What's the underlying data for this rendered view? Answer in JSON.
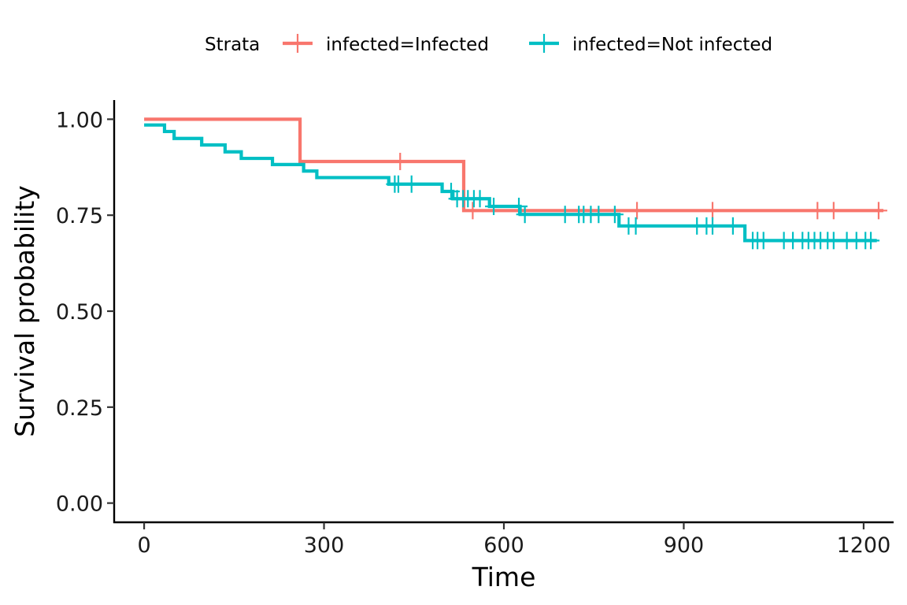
{
  "chart_data": {
    "type": "line",
    "subtype": "kaplan-meier step",
    "title": "",
    "xlabel": "Time",
    "ylabel": "Survival probability",
    "xlim": [
      -50,
      1250
    ],
    "ylim": [
      -0.05,
      1.05
    ],
    "x_ticks": [
      0,
      300,
      600,
      900,
      1200
    ],
    "x_tick_labels": [
      "0",
      "300",
      "600",
      "900",
      "1200"
    ],
    "y_ticks": [
      0,
      0.25,
      0.5,
      0.75,
      1.0
    ],
    "y_tick_labels": [
      "0.00",
      "0.25",
      "0.50",
      "0.75",
      "1.00"
    ],
    "grid": false,
    "legend": {
      "title": "Strata",
      "position": "top"
    },
    "series": [
      {
        "name": "infected=Infected",
        "color": "#F8766D",
        "steps": [
          [
            0,
            1.0
          ],
          [
            260,
            0.89
          ],
          [
            533,
            0.762
          ]
        ],
        "end_x": 1233,
        "censor_times": [
          427,
          548,
          822,
          948,
          1123,
          1150,
          1225
        ]
      },
      {
        "name": "infected=Not infected",
        "color": "#00BFC4",
        "steps": [
          [
            0,
            0.985
          ],
          [
            34,
            0.968
          ],
          [
            50,
            0.95
          ],
          [
            96,
            0.933
          ],
          [
            135,
            0.915
          ],
          [
            162,
            0.898
          ],
          [
            214,
            0.882
          ],
          [
            266,
            0.865
          ],
          [
            288,
            0.848
          ],
          [
            408,
            0.831
          ],
          [
            497,
            0.812
          ],
          [
            515,
            0.793
          ],
          [
            576,
            0.773
          ],
          [
            627,
            0.752
          ],
          [
            792,
            0.722
          ],
          [
            1002,
            0.684
          ]
        ],
        "end_x": 1222,
        "censor_times": [
          418,
          424,
          446,
          512,
          522,
          532,
          540,
          550,
          560,
          583,
          625,
          635,
          702,
          725,
          733,
          745,
          758,
          785,
          808,
          820,
          922,
          938,
          948,
          982,
          1015,
          1023,
          1033,
          1067,
          1082,
          1098,
          1108,
          1118,
          1128,
          1140,
          1150,
          1172,
          1188,
          1203,
          1212
        ]
      }
    ]
  }
}
